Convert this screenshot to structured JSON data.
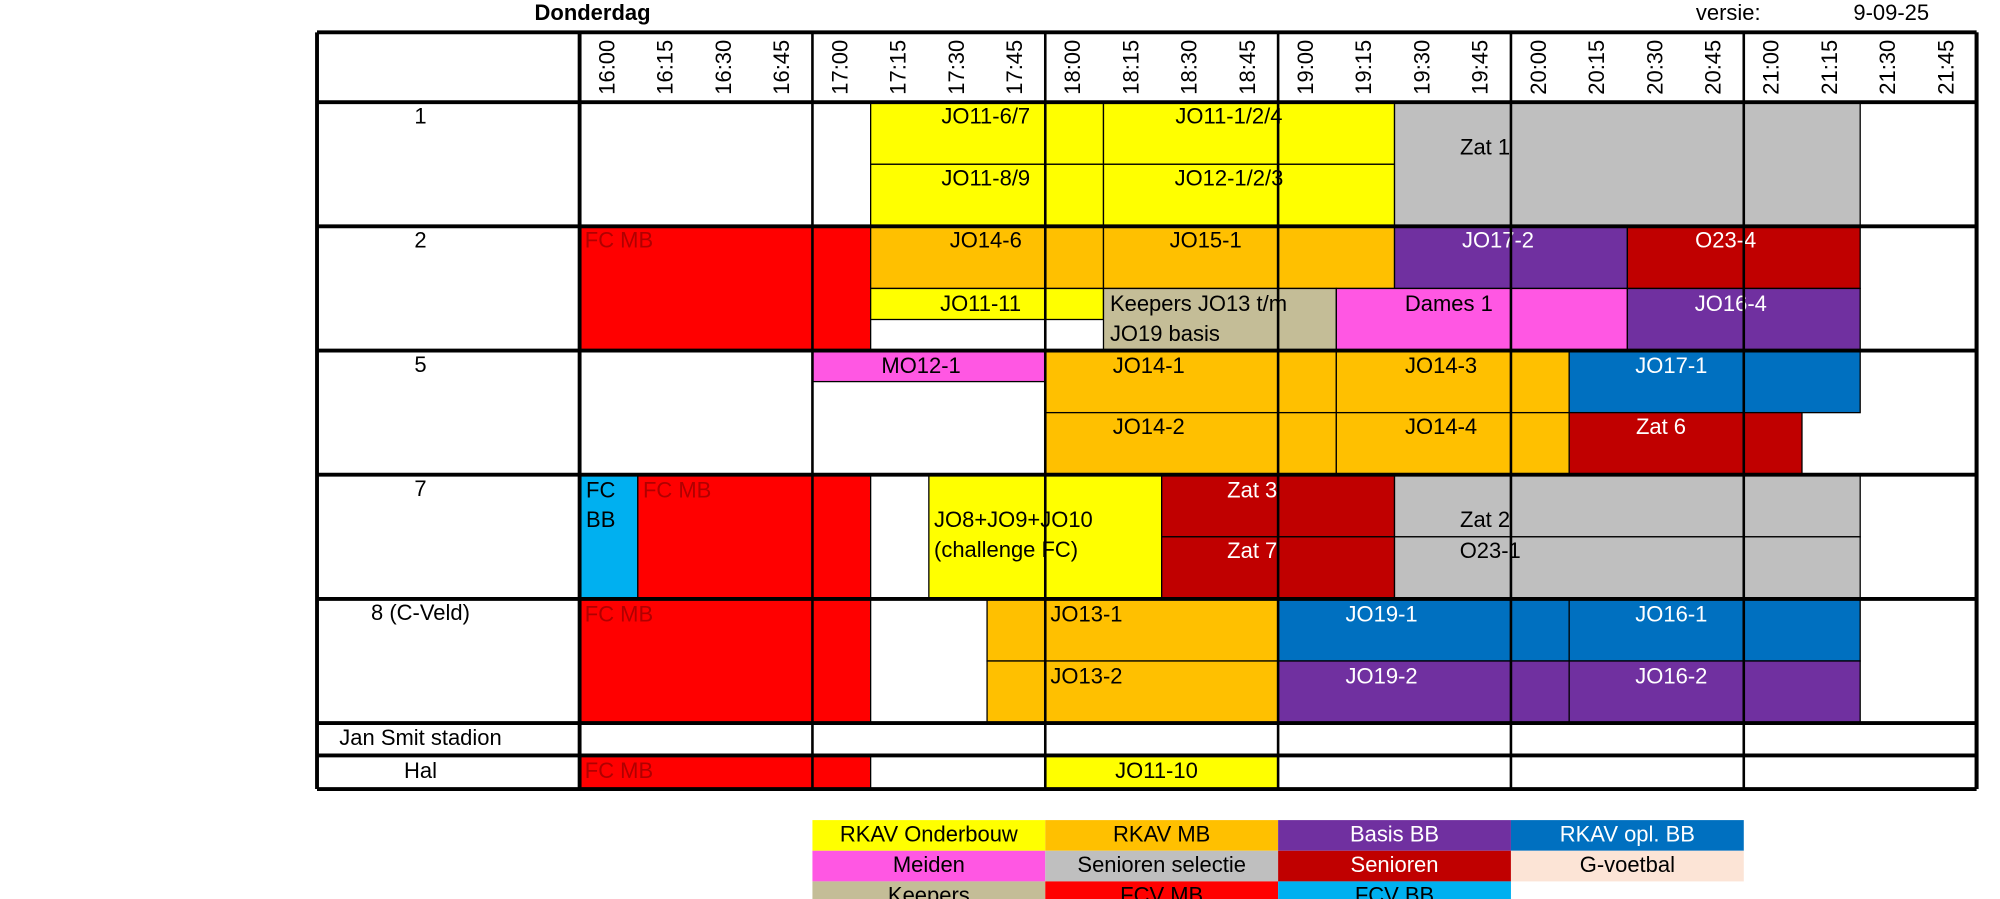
{
  "header": {
    "day": "Donderdag",
    "version_label": "versie:",
    "version": "9-09-25"
  },
  "times": [
    "16:00",
    "16:15",
    "16:30",
    "16:45",
    "17:00",
    "17:15",
    "17:30",
    "17:45",
    "18:00",
    "18:15",
    "18:30",
    "18:45",
    "19:00",
    "19:15",
    "19:30",
    "19:45",
    "20:00",
    "20:15",
    "20:30",
    "20:45",
    "21:00",
    "21:15",
    "21:30",
    "21:45"
  ],
  "fields": [
    {
      "label": "1",
      "blocks": [
        {
          "lines": [
            "JO11-6/7"
          ]
        },
        {
          "lines": [
            "JO11-1/2/4"
          ]
        },
        {
          "lines": [
            "JO11-8/9"
          ]
        },
        {
          "lines": [
            "JO12-1/2/3"
          ]
        },
        {
          "lines": [
            "Zat 1"
          ]
        }
      ]
    },
    {
      "label": "2",
      "blocks": [
        {
          "lines": [
            "FC MB"
          ]
        },
        {
          "lines": [
            "JO14-6"
          ]
        },
        {
          "lines": [
            "JO15-1"
          ]
        },
        {
          "lines": [
            "JO17-2"
          ]
        },
        {
          "lines": [
            "O23-4"
          ]
        },
        {
          "lines": [
            "JO11-11"
          ]
        },
        {
          "lines": [
            "Keepers JO13 t/m",
            "JO19 basis"
          ]
        },
        {
          "lines": [
            "Dames 1"
          ]
        },
        {
          "lines": [
            "JO16-4"
          ]
        }
      ]
    },
    {
      "label": "5",
      "blocks": [
        {
          "lines": [
            "MO12-1"
          ]
        },
        {
          "lines": [
            "JO14-1"
          ]
        },
        {
          "lines": [
            "JO14-3"
          ]
        },
        {
          "lines": [
            "JO17-1"
          ]
        },
        {
          "lines": [
            "JO14-2"
          ]
        },
        {
          "lines": [
            "JO14-4"
          ]
        },
        {
          "lines": [
            "Zat 6"
          ]
        }
      ]
    },
    {
      "label": "7",
      "blocks": [
        {
          "lines": [
            "FC",
            "BB"
          ]
        },
        {
          "lines": [
            "FC MB"
          ]
        },
        {
          "lines": [
            "JO8+JO9+JO10",
            "(challenge FC)"
          ]
        },
        {
          "lines": [
            "Zat 3"
          ]
        },
        {
          "lines": [
            "Zat 7"
          ]
        },
        {
          "lines": [
            "Zat 2"
          ]
        },
        {
          "lines": [
            "O23-1"
          ]
        }
      ]
    },
    {
      "label": "8 (C-Veld)",
      "blocks": [
        {
          "lines": [
            "FC MB"
          ]
        },
        {
          "lines": [
            "JO13-1"
          ]
        },
        {
          "lines": [
            "JO19-1"
          ]
        },
        {
          "lines": [
            "JO16-1"
          ]
        },
        {
          "lines": [
            "JO13-2"
          ]
        },
        {
          "lines": [
            "JO19-2"
          ]
        },
        {
          "lines": [
            "JO16-2"
          ]
        }
      ]
    },
    {
      "label": "Jan Smit stadion",
      "blocks": []
    },
    {
      "label": "Hal",
      "blocks": [
        {
          "lines": [
            "FC MB"
          ]
        },
        {
          "lines": [
            "JO11-10"
          ]
        }
      ]
    }
  ],
  "legend": [
    [
      "RKAV Onderbouw",
      "RKAV MB",
      "Basis BB",
      "RKAV opl. BB"
    ],
    [
      "Meiden",
      "Senioren selectie",
      "Senioren",
      "G-voetbal"
    ],
    [
      "Keepers",
      "FCV MB",
      "FCV BB"
    ]
  ]
}
